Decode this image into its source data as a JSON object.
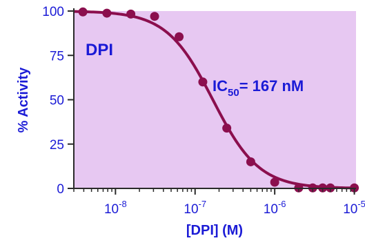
{
  "chart_data": {
    "type": "scatter",
    "title": "",
    "xlabel": "[DPI] (M)",
    "ylabel": "% Activity",
    "x_scale": "log",
    "xlim": [
      3e-09,
      1.05e-05
    ],
    "ylim": [
      0,
      100
    ],
    "x_ticks": [
      {
        "value": 1e-08,
        "base": "10",
        "exp": "-8"
      },
      {
        "value": 1e-07,
        "base": "10",
        "exp": "-7"
      },
      {
        "value": 1e-06,
        "base": "10",
        "exp": "-6"
      },
      {
        "value": 1e-05,
        "base": "10",
        "exp": "-5"
      }
    ],
    "y_ticks": [
      0,
      25,
      50,
      75,
      100
    ],
    "grid": false,
    "series": [
      {
        "points": [
          {
            "x": 3.9e-09,
            "y": 99.5
          },
          {
            "x": 7.8e-09,
            "y": 98.8
          },
          {
            "x": 1.56e-08,
            "y": 98.3
          },
          {
            "x": 3.1e-08,
            "y": 97.0
          },
          {
            "x": 6.3e-08,
            "y": 85.5
          },
          {
            "x": 1.25e-07,
            "y": 60.0
          },
          {
            "x": 2.5e-07,
            "y": 34.0
          },
          {
            "x": 5e-07,
            "y": 15.0
          },
          {
            "x": 1e-06,
            "y": 3.5
          },
          {
            "x": 2e-06,
            "y": 0.3
          },
          {
            "x": 3e-06,
            "y": 0.3
          },
          {
            "x": 4e-06,
            "y": 0.3
          },
          {
            "x": 5e-06,
            "y": 0.3
          },
          {
            "x": 1e-05,
            "y": 0.3
          }
        ],
        "fit": {
          "model": "4PL",
          "top": 100,
          "bottom": 0,
          "ic50": 1.67e-07,
          "hill": 1.5
        }
      }
    ],
    "annotations": {
      "compound": "DPI",
      "ic50_prefix": "IC",
      "ic50_subscript": "50",
      "ic50_suffix": "= 167 nM"
    }
  },
  "colors": {
    "plot_background": "#e7c8f2",
    "marker": "#8b0f4e",
    "text": "#1b1bd6",
    "axis": "#2a2a2a"
  }
}
